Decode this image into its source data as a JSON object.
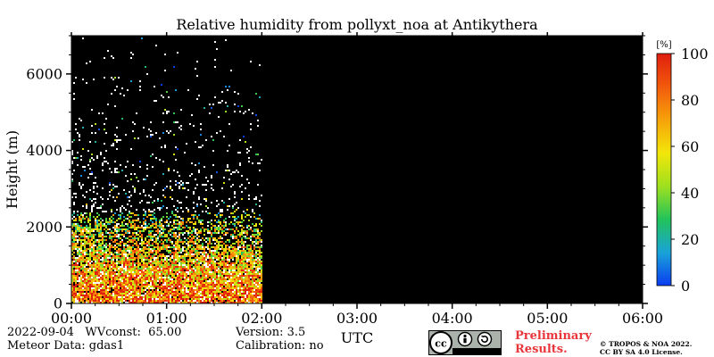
{
  "chart_data": {
    "type": "heatmap",
    "title": "Relative humidity from pollyxt_noa at Antikythera",
    "xlabel": "UTC",
    "ylabel": "Height (m)",
    "x_ticks": [
      "00:00",
      "01:00",
      "02:00",
      "03:00",
      "04:00",
      "05:00",
      "06:00"
    ],
    "x_range_hours": [
      0,
      6
    ],
    "y_ticks": [
      0,
      2000,
      4000,
      6000
    ],
    "ylim": [
      0,
      7000
    ],
    "colorbar": {
      "unit": "[%]",
      "ticks": [
        0,
        20,
        40,
        60,
        80,
        100
      ],
      "range": [
        0,
        100
      ],
      "colors": [
        "#0a3cf0",
        "#1aa3d8",
        "#22c35a",
        "#9fe01e",
        "#f2e60a",
        "#f7a20a",
        "#f25a0c",
        "#e01e0e"
      ]
    },
    "background_color": "#000000",
    "data_time_extent_hours": [
      0.0,
      2.0
    ],
    "profile": [
      {
        "height": 250,
        "rh": 82
      },
      {
        "height": 750,
        "rh": 72
      },
      {
        "height": 1250,
        "rh": 64
      },
      {
        "height": 1750,
        "rh": 58
      },
      {
        "height": 2250,
        "rh": 45
      },
      {
        "height": 3000,
        "rh": 30
      },
      {
        "height": 4000,
        "rh": 20
      },
      {
        "height": 5000,
        "rh": 15
      },
      {
        "height": 6500,
        "rh": 10
      }
    ]
  },
  "footer": {
    "date_line": "2022-09-04   WVconst:  65.00",
    "meteor_line": "Meteor Data: gdas1",
    "version_line": "Version: 3.5",
    "calibration_line": "Calibration: no",
    "preliminary_line1": "Preliminary",
    "preliminary_line2": "Results.",
    "copyright_line1": "© TROPOS & NOA 2022.",
    "copyright_line2": "CC BY SA 4.0 License.",
    "cc_badge": {
      "cc": "cc",
      "by": "BY",
      "sa": "SA"
    }
  }
}
